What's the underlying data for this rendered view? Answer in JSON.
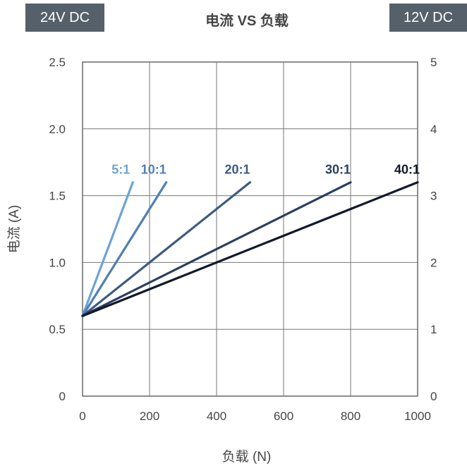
{
  "header": {
    "left_badge": "24V DC",
    "right_badge": "12V DC",
    "title": "电流 VS 负载"
  },
  "chart_data": {
    "type": "line",
    "title": "电流 VS 负载",
    "xlabel": "负载 (N)",
    "ylabel": "电流 (A)",
    "xlim": [
      0,
      1000
    ],
    "ylim": [
      0,
      2.5
    ],
    "y2lim": [
      0,
      5
    ],
    "x_ticks": [
      "0",
      "200",
      "400",
      "600",
      "800",
      "1000"
    ],
    "y_ticks": [
      "0",
      "0.5",
      "1.0",
      "1.5",
      "2.0",
      "2.5"
    ],
    "y2_ticks": [
      "0",
      "1",
      "2",
      "3",
      "4",
      "5"
    ],
    "grid": true,
    "series": [
      {
        "name": "5:1",
        "color": "#6fa3d2",
        "x": [
          0,
          150
        ],
        "y": [
          0.6,
          1.6
        ]
      },
      {
        "name": "10:1",
        "color": "#4f7fb5",
        "x": [
          0,
          250
        ],
        "y": [
          0.6,
          1.6
        ]
      },
      {
        "name": "20:1",
        "color": "#3d5a82",
        "x": [
          0,
          500
        ],
        "y": [
          0.6,
          1.6
        ]
      },
      {
        "name": "30:1",
        "color": "#2a3e5e",
        "x": [
          0,
          800
        ],
        "y": [
          0.6,
          1.6
        ]
      },
      {
        "name": "40:1",
        "color": "#111a2a",
        "x": [
          0,
          1000
        ],
        "y": [
          0.6,
          1.6
        ]
      }
    ]
  }
}
